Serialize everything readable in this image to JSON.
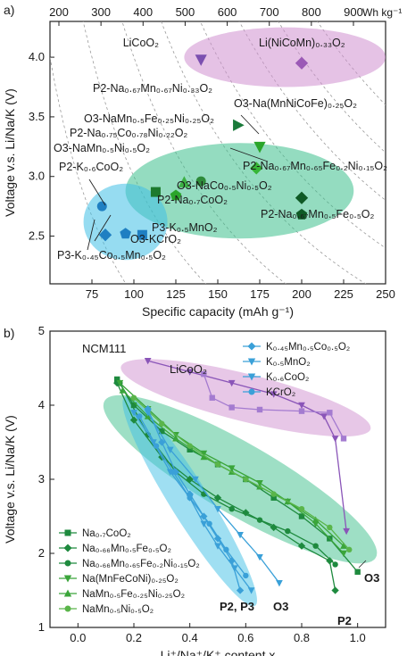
{
  "chart_data": [
    {
      "panel_label": "a)",
      "type": "scatter",
      "xlabel": "Specific capacity (mAh g⁻¹)",
      "ylabel": "Voltage v.s. Li/Na/K (V)",
      "xlim": [
        50,
        250
      ],
      "ylim": [
        2.1,
        4.3
      ],
      "xticks": [
        75,
        100,
        125,
        150,
        175,
        200,
        225,
        250
      ],
      "yticks": [
        2.5,
        3.0,
        3.5,
        4.0
      ],
      "top_axis": {
        "label": "Wh kg⁻¹",
        "ticks": [
          200,
          300,
          400,
          500,
          600,
          700,
          800,
          900
        ]
      },
      "regions": [
        {
          "group": "Li",
          "color": "#cf8fd0",
          "cx": 190,
          "cy": 4.0,
          "rx": 60,
          "ry": 0.25
        },
        {
          "group": "Na",
          "color": "#3dbf8c",
          "cx": 163,
          "cy": 2.88,
          "rx": 68,
          "ry": 0.4
        },
        {
          "group": "K",
          "color": "#3fbfe6",
          "cx": 95,
          "cy": 2.62,
          "rx": 25,
          "ry": 0.32
        }
      ],
      "points": [
        {
          "label": "LiCoO₂",
          "x": 140,
          "y": 3.98,
          "marker": "triangle-down",
          "color": "#7b4fb0"
        },
        {
          "label": "Li(NiCoMn)₀.₃₃O₂",
          "x": 200,
          "y": 3.95,
          "marker": "diamond",
          "color": "#9b59b6"
        },
        {
          "label": "O3-Na(MnNiCoFe)₀.₂₅O₂",
          "x": 175,
          "y": 3.25,
          "marker": "triangle-down",
          "color": "#2aa52a"
        },
        {
          "label": "O3-NaMn₀.₅Fe₀.₂₅Ni₀.₂₅O₂",
          "x": 162,
          "y": 3.43,
          "marker": "triangle-right",
          "color": "#1a7a3a"
        },
        {
          "label": "P2-Na₀.₆₇Mn₀.₆₅Fe₀.₂Ni₀.₁₅O₂",
          "x": 173,
          "y": 3.07,
          "marker": "diamond",
          "color": "#36b536"
        },
        {
          "label": "P2-Na₀.₇₅Co₀.₇₈Ni₀.₂₂O₂",
          "x": 130,
          "y": 2.95,
          "marker": "triangle-up",
          "color": "#3cb044"
        },
        {
          "label": "O3-NaMn₀.₅Ni₀.₅O₂",
          "x": 140,
          "y": 2.96,
          "marker": "circle",
          "color": "#2e8b3a"
        },
        {
          "label": "P2-Na₀.₇CoO₂",
          "x": 113,
          "y": 2.87,
          "marker": "square",
          "color": "#1d7a2e"
        },
        {
          "label": "P2-Na₀.₆₇Mn₀.₅Fe₀.₅O₂",
          "x": 200,
          "y": 2.82,
          "marker": "diamond",
          "color": "#0f5a25"
        },
        {
          "label": "O3-NaCo₀.₅Ni₀.₅O₂",
          "x": 125,
          "y": 2.84,
          "marker": "pentagon",
          "color": "#2aa52a"
        },
        {
          "label": "O3-NaCo₀.₅Ni₀.₅O₂ ",
          "x": 200,
          "y": 2.68,
          "marker": "pentagon",
          "color": "#0f5a25"
        },
        {
          "label": "P2-K₀.₆CoO₂",
          "x": 81,
          "y": 2.75,
          "marker": "circle",
          "color": "#1f7fc2"
        },
        {
          "label": "P3-K₀.₅MnO₂",
          "x": 105,
          "y": 2.51,
          "marker": "square",
          "color": "#1f7fc2"
        },
        {
          "label": "O3-KCrO₂",
          "x": 95,
          "y": 2.52,
          "marker": "pentagon",
          "color": "#1f7fc2"
        },
        {
          "label": "P3-K₀.₄₅Co₀.₅Mn₀.₅O₂",
          "x": 83,
          "y": 2.51,
          "marker": "diamond",
          "color": "#1f7fc2"
        }
      ],
      "annotations": [
        {
          "text": "LiCoO₂"
        },
        {
          "text": "Li(NiCoMn)₀.₃₃O₂"
        },
        {
          "text": "P2-Na₀.₆₇Mn₀.₆₇Ni₀.₃₃O₂"
        },
        {
          "text": "O3-Na(MnNiCoFe)₀.₂₅O₂"
        },
        {
          "text": "O3-NaMn₀.₅Fe₀.₂₅Ni₀.₂₅O₂"
        },
        {
          "text": "P2-Na₀.₇₅Co₀.₇₈Ni₀.₂₂O₂"
        },
        {
          "text": "O3-NaMn₀.₅Ni₀.₅O₂"
        },
        {
          "text": "P2-Na₀.₆₇Mn₀.₆₅Fe₀.₂Ni₀.₁₅O₂"
        },
        {
          "text": "P2-K₀.₆CoO₂"
        },
        {
          "text": "O3-NaCo₀.₅Ni₀.₅O₂"
        },
        {
          "text": "P2-Na₀.₇CoO₂"
        },
        {
          "text": "P3-K₀.₅MnO₂"
        },
        {
          "text": "P2-Na₀.₆₇Mn₀.₅Fe₀.₅O₂"
        },
        {
          "text": "O3-KCrO₂"
        },
        {
          "text": "P3-K₀.₄₅Co₀.₅Mn₀.₅O₂"
        }
      ]
    },
    {
      "panel_label": "b)",
      "type": "line",
      "xlabel": "Li⁺/Na⁺/K⁺ content x",
      "ylabel": "Voltage v.s. Li/Na/K (V)",
      "xlim": [
        -0.1,
        1.1
      ],
      "ylim": [
        1,
        5
      ],
      "xticks": [
        0.0,
        0.2,
        0.4,
        0.6,
        0.8,
        1.0
      ],
      "yticks": [
        1,
        2,
        3,
        4,
        5
      ],
      "region_labels": [
        "NCM111",
        "LiCoO₂",
        "P2, P3",
        "O3",
        "P2",
        "O3"
      ],
      "regions": [
        {
          "group": "Li",
          "color": "#cf8fd0",
          "cx": 0.6,
          "cy": 4.1,
          "rx": 0.46,
          "ry": 0.32,
          "rot": 14
        },
        {
          "group": "Na",
          "color": "#3dbf8c",
          "cx": 0.58,
          "cy": 3.0,
          "rx": 0.56,
          "ry": 0.48,
          "rot": 30
        },
        {
          "group": "K",
          "color": "#3fbfe6",
          "cx": 0.4,
          "cy": 2.7,
          "rx": 0.44,
          "ry": 0.26,
          "rot": 58
        }
      ],
      "legend": [
        {
          "label": "Na₀.₇CoO₂",
          "marker": "square",
          "color": "#1e8a3e"
        },
        {
          "label": "Na₀.₆₆Mn₀.₅Fe₀.₅O₂",
          "marker": "diamond",
          "color": "#1e8a3e"
        },
        {
          "label": "Na₀.₆₆Mn₀.₆₅Fe₀.₂Ni₀.₁₅O₂",
          "marker": "circle",
          "color": "#1e8a3e"
        },
        {
          "label": "Na(MnFeCoNi)₀.₂₅O₂",
          "marker": "triangle-down",
          "color": "#3aa53a"
        },
        {
          "label": "NaMn₀.₅Fe₀.₂₅Ni₀.₂₅O₂",
          "marker": "triangle-up",
          "color": "#3aa53a"
        },
        {
          "label": "NaMn₀.₅Ni₀.₅O₂",
          "marker": "circle",
          "color": "#5ab54a"
        },
        {
          "label": "K₀.₄₅Mn₀.₅Co₀.₅O₂",
          "marker": "diamond",
          "color": "#3aa0d8"
        },
        {
          "label": "K₀.₅MnO₂",
          "marker": "triangle-down",
          "color": "#3aa0d8"
        },
        {
          "label": "K₀.₆CoO₂",
          "marker": "triangle-down",
          "color": "#3aa0d8"
        },
        {
          "label": "KCrO₂",
          "marker": "circle",
          "color": "#3aa0d8"
        }
      ],
      "series": [
        {
          "name": "NCM111",
          "color": "#8a55b8",
          "marker": "triangle-down",
          "x": [
            0.25,
            0.4,
            0.55,
            0.7,
            0.8,
            0.88,
            0.92,
            0.96
          ],
          "y": [
            4.6,
            4.45,
            4.3,
            4.15,
            4.0,
            3.85,
            3.55,
            2.3
          ]
        },
        {
          "name": "LiCoO₂",
          "color": "#a47bd0",
          "marker": "square",
          "x": [
            0.45,
            0.48,
            0.55,
            0.65,
            0.8,
            0.9,
            0.95
          ],
          "y": [
            4.42,
            4.1,
            3.97,
            3.94,
            3.92,
            3.9,
            3.55
          ]
        },
        {
          "name": "Na₀.₇CoO₂",
          "color": "#1e8a3e",
          "marker": "square",
          "x": [
            0.14,
            0.2,
            0.3,
            0.4,
            0.5,
            0.6,
            0.7,
            0.8,
            0.9,
            1.0
          ],
          "y": [
            4.35,
            4.0,
            3.65,
            3.4,
            3.2,
            3.0,
            2.75,
            2.5,
            2.2,
            1.75
          ]
        },
        {
          "name": "Na₀.₆₆Mn₀.₅Fe₀.₅O₂",
          "color": "#1e8a3e",
          "marker": "diamond",
          "x": [
            0.14,
            0.2,
            0.3,
            0.4,
            0.5,
            0.6,
            0.7,
            0.8,
            0.9,
            0.92
          ],
          "y": [
            4.3,
            3.8,
            3.3,
            3.0,
            2.75,
            2.55,
            2.35,
            2.1,
            1.9,
            1.5
          ]
        },
        {
          "name": "Na₀.₆₆Mn₀.₆₅Fe₀.₂Ni₀.₁₅O₂",
          "color": "#1e8a3e",
          "marker": "circle",
          "x": [
            0.15,
            0.25,
            0.35,
            0.45,
            0.55,
            0.65,
            0.75,
            0.85,
            0.92
          ],
          "y": [
            4.3,
            3.6,
            3.1,
            2.8,
            2.6,
            2.45,
            2.3,
            2.1,
            1.85
          ]
        },
        {
          "name": "Na(MnFeCoNi)₀.₂₅O₂",
          "color": "#3aa53a",
          "marker": "triangle-down",
          "x": [
            0.15,
            0.25,
            0.35,
            0.45,
            0.55,
            0.65,
            0.75,
            0.85,
            0.95
          ],
          "y": [
            4.3,
            3.95,
            3.6,
            3.35,
            3.15,
            2.95,
            2.7,
            2.4,
            2.0
          ]
        },
        {
          "name": "NaMn₀.₅Fe₀.₂₅Ni₀.₂₅O₂",
          "color": "#3aa53a",
          "marker": "triangle-up",
          "x": [
            0.16,
            0.25,
            0.35,
            0.45,
            0.55,
            0.65,
            0.75,
            0.85,
            0.95
          ],
          "y": [
            4.2,
            3.85,
            3.55,
            3.3,
            3.1,
            2.9,
            2.7,
            2.45,
            2.1
          ]
        },
        {
          "name": "NaMn₀.₅Ni₀.₅O₂",
          "color": "#5ab54a",
          "marker": "circle",
          "x": [
            0.2,
            0.3,
            0.4,
            0.5,
            0.6,
            0.7,
            0.8,
            0.9,
            0.97
          ],
          "y": [
            4.1,
            3.75,
            3.45,
            3.2,
            3.0,
            2.8,
            2.6,
            2.35,
            2.05
          ]
        },
        {
          "name": "K₀.₄₅Mn₀.₅Co₀.₅O₂",
          "color": "#3aa0d8",
          "marker": "diamond",
          "x": [
            0.25,
            0.3,
            0.35,
            0.4,
            0.45,
            0.5,
            0.55,
            0.58
          ],
          "y": [
            3.95,
            3.5,
            3.1,
            2.8,
            2.5,
            2.2,
            1.9,
            1.5
          ]
        },
        {
          "name": "K₀.₅MnO₂",
          "color": "#3aa0d8",
          "marker": "triangle-down",
          "x": [
            0.2,
            0.27,
            0.33,
            0.4,
            0.45,
            0.5,
            0.56,
            0.62
          ],
          "y": [
            3.9,
            3.5,
            3.1,
            2.75,
            2.4,
            2.1,
            1.8,
            1.5
          ]
        },
        {
          "name": "K₀.₆CoO₂",
          "color": "#3aa0d8",
          "marker": "triangle-down",
          "x": [
            0.25,
            0.33,
            0.42,
            0.5,
            0.58,
            0.65,
            0.72
          ],
          "y": [
            3.9,
            3.4,
            3.0,
            2.6,
            2.25,
            1.95,
            1.6
          ]
        },
        {
          "name": "KCrO₂",
          "color": "#3aa0d8",
          "marker": "circle",
          "x": [
            0.22,
            0.28,
            0.34,
            0.4,
            0.47,
            0.53,
            0.6
          ],
          "y": [
            3.85,
            3.45,
            3.1,
            2.75,
            2.4,
            2.05,
            1.7
          ]
        }
      ]
    }
  ]
}
